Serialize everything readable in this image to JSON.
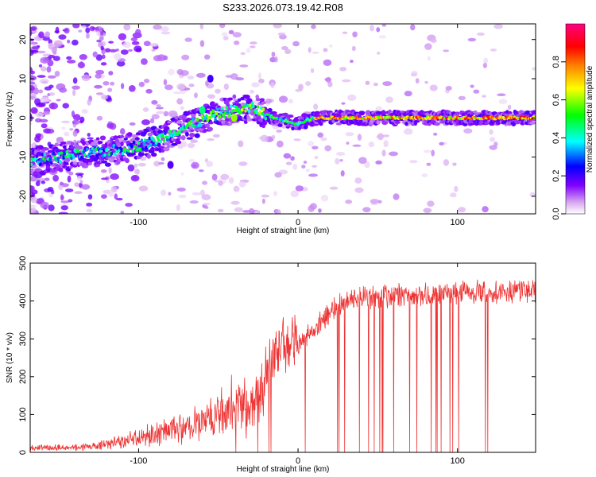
{
  "title": "S233.2026.073.19.42.R08",
  "chart_data": [
    {
      "type": "heatmap",
      "title": "S233.2026.073.19.42.R08",
      "xlabel": "Height of straight line (km)",
      "ylabel": "Frequency (Hz)",
      "xlim": [
        -168,
        149
      ],
      "ylim": [
        -24.5,
        24
      ],
      "xticks": [
        -100,
        0,
        100
      ],
      "yticks": [
        20,
        10,
        0,
        -10,
        -20
      ],
      "colorbar": {
        "label": "Normalized spectral amplitude",
        "range": [
          0,
          1
        ],
        "ticks": [
          0.0,
          0.2,
          0.4,
          0.6,
          0.8
        ],
        "colors": [
          "#ffffff",
          "#d8a8f0",
          "#8000ff",
          "#0000ff",
          "#00ffff",
          "#00ff00",
          "#ffff00",
          "#ff8000",
          "#ff0000",
          "#ff0080"
        ]
      },
      "ridge": [
        {
          "x": -168,
          "y": -11
        },
        {
          "x": -130,
          "y": -9
        },
        {
          "x": -110,
          "y": -8
        },
        {
          "x": -90,
          "y": -6
        },
        {
          "x": -75,
          "y": -3
        },
        {
          "x": -62,
          "y": -1
        },
        {
          "x": -50,
          "y": 1
        },
        {
          "x": -40,
          "y": 2
        },
        {
          "x": -28,
          "y": 2.5
        },
        {
          "x": -15,
          "y": 0
        },
        {
          "x": 0,
          "y": -1.5
        },
        {
          "x": 10,
          "y": 0
        },
        {
          "x": 149,
          "y": 0
        }
      ]
    },
    {
      "type": "line",
      "xlabel": "Height of straight line (km)",
      "ylabel": "SNR (10 * v/v)",
      "xlim": [
        -168,
        149
      ],
      "ylim": [
        0,
        500
      ],
      "xticks": [
        -100,
        0,
        100
      ],
      "yticks": [
        0,
        100,
        200,
        300,
        400,
        500
      ],
      "series": [
        {
          "name": "SNR",
          "color": "#ee3333",
          "envelope": [
            {
              "x": -168,
              "y": 15
            },
            {
              "x": -130,
              "y": 20
            },
            {
              "x": -110,
              "y": 40
            },
            {
              "x": -90,
              "y": 70
            },
            {
              "x": -70,
              "y": 90
            },
            {
              "x": -55,
              "y": 130
            },
            {
              "x": -42,
              "y": 170
            },
            {
              "x": -30,
              "y": 160
            },
            {
              "x": -20,
              "y": 230
            },
            {
              "x": -10,
              "y": 280
            },
            {
              "x": 0,
              "y": 300
            },
            {
              "x": 10,
              "y": 340
            },
            {
              "x": 20,
              "y": 390
            },
            {
              "x": 30,
              "y": 420
            },
            {
              "x": 50,
              "y": 430
            },
            {
              "x": 80,
              "y": 435
            },
            {
              "x": 110,
              "y": 440
            },
            {
              "x": 149,
              "y": 445
            }
          ]
        }
      ]
    }
  ]
}
